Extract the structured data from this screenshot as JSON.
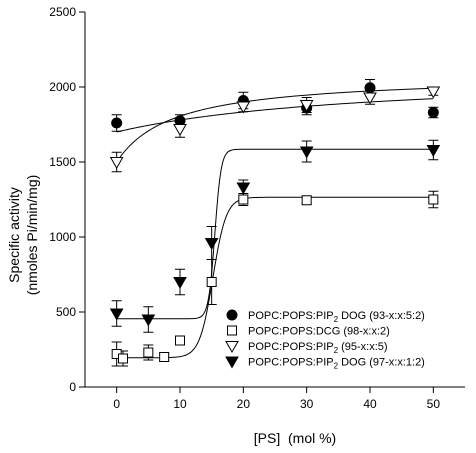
{
  "chart_data": {
    "type": "scatter",
    "title": "",
    "xlabel": "[PS]  (mol %)",
    "ylabel_line1": "Specific activity",
    "ylabel_line2": "(nmoles Pi/min/mg)",
    "xlim": [
      -5,
      55
    ],
    "ylim": [
      0,
      2500
    ],
    "x_ticks": [
      0,
      10,
      20,
      30,
      40,
      50
    ],
    "y_ticks": [
      0,
      500,
      1000,
      1500,
      2000,
      2500
    ],
    "grid": false,
    "legend_position": "lower-right",
    "series": [
      {
        "name": "POPC:POPS:PIP2 DOG (93-x:x:5:2)",
        "legend_prefix": "POPC:POPS:PIP",
        "legend_sub": "2",
        "legend_suffix": " DOG (93-x:x:5:2)",
        "marker": "circle-filled",
        "x": [
          0,
          10,
          20,
          30,
          40,
          50
        ],
        "y": [
          1760,
          1775,
          1910,
          1860,
          1995,
          1830
        ],
        "err": [
          55,
          40,
          55,
          45,
          55,
          35
        ],
        "fit": {
          "type": "hyperbolic",
          "bottom": 1700,
          "top": 2100,
          "half": 40
        }
      },
      {
        "name": "POPC:POPS:DCG (98-x:x:2)",
        "legend_prefix": "POPC:POPS:DCG (98-x:x:2)",
        "legend_sub": "",
        "legend_suffix": "",
        "marker": "square-open",
        "x": [
          0,
          1,
          5,
          7.5,
          10,
          15,
          20,
          30,
          50
        ],
        "y": [
          220,
          190,
          230,
          200,
          310,
          700,
          1250,
          1245,
          1250
        ],
        "err": [
          80,
          50,
          50,
          25,
          30,
          150,
          40,
          25,
          55
        ],
        "fit": {
          "type": "sigmoid",
          "bottom": 195,
          "top": 1265,
          "x50": 15.2,
          "slope": 1.05
        }
      },
      {
        "name": "POPC:POPS:PIP2 (95-x:x:5)",
        "legend_prefix": "POPC:POPS:PIP",
        "legend_sub": "2",
        "legend_suffix": " (95-x:x:5)",
        "marker": "triangle-down-open",
        "x": [
          0,
          10,
          20,
          30,
          40,
          50
        ],
        "y": [
          1500,
          1720,
          1870,
          1880,
          1930,
          1970
        ],
        "err": [
          65,
          55,
          35,
          50,
          45,
          25
        ],
        "fit": {
          "type": "hyperbolic",
          "bottom": 1500,
          "top": 2080,
          "half": 9
        }
      },
      {
        "name": "POPC:POPS:PIP2 DOG (97-x:x:1:2)",
        "legend_prefix": "POPC:POPS:PIP",
        "legend_sub": "2",
        "legend_suffix": " DOG (97-x:x:1:2)",
        "marker": "triangle-down-filled",
        "x": [
          0,
          5,
          10,
          15,
          20,
          30,
          50
        ],
        "y": [
          490,
          450,
          700,
          960,
          1330,
          1570,
          1580
        ],
        "err": [
          85,
          85,
          85,
          110,
          50,
          70,
          65
        ],
        "fit": {
          "type": "sigmoid",
          "bottom": 455,
          "top": 1585,
          "x50": 15.5,
          "slope": 0.5
        }
      }
    ]
  }
}
